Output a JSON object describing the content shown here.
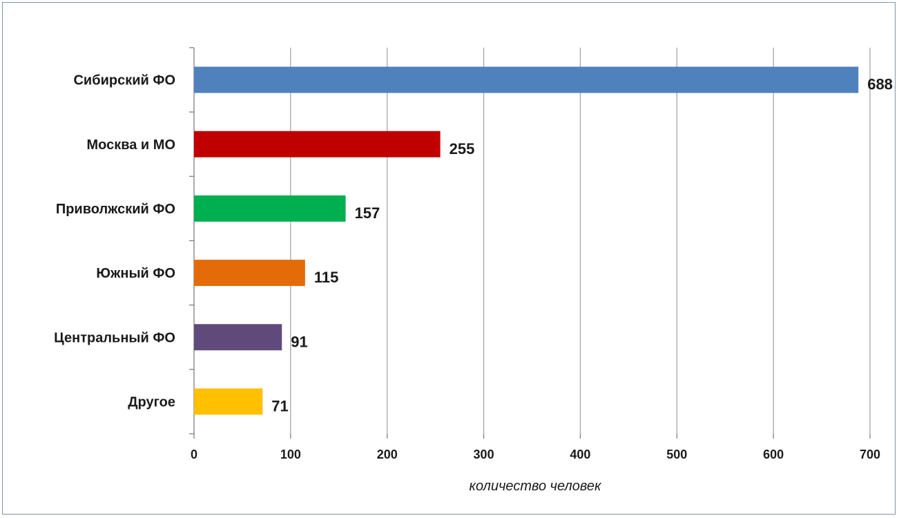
{
  "chart_data": {
    "type": "bar",
    "orientation": "horizontal",
    "categories": [
      "Сибирский ФО",
      "Москва и МО",
      "Приволжский ФО",
      "Южный ФО",
      "Центральный ФО",
      "Другое"
    ],
    "values": [
      688,
      255,
      157,
      115,
      91,
      71
    ],
    "colors": [
      "#4f81bd",
      "#c00000",
      "#00b050",
      "#e36c09",
      "#604a7b",
      "#ffc000"
    ],
    "title": "",
    "xlabel": "количество человек",
    "ylabel": "",
    "xlim": [
      0,
      700
    ],
    "xticks": [
      0,
      100,
      200,
      300,
      400,
      500,
      600,
      700
    ],
    "grid": "vertical",
    "legend": "none"
  }
}
